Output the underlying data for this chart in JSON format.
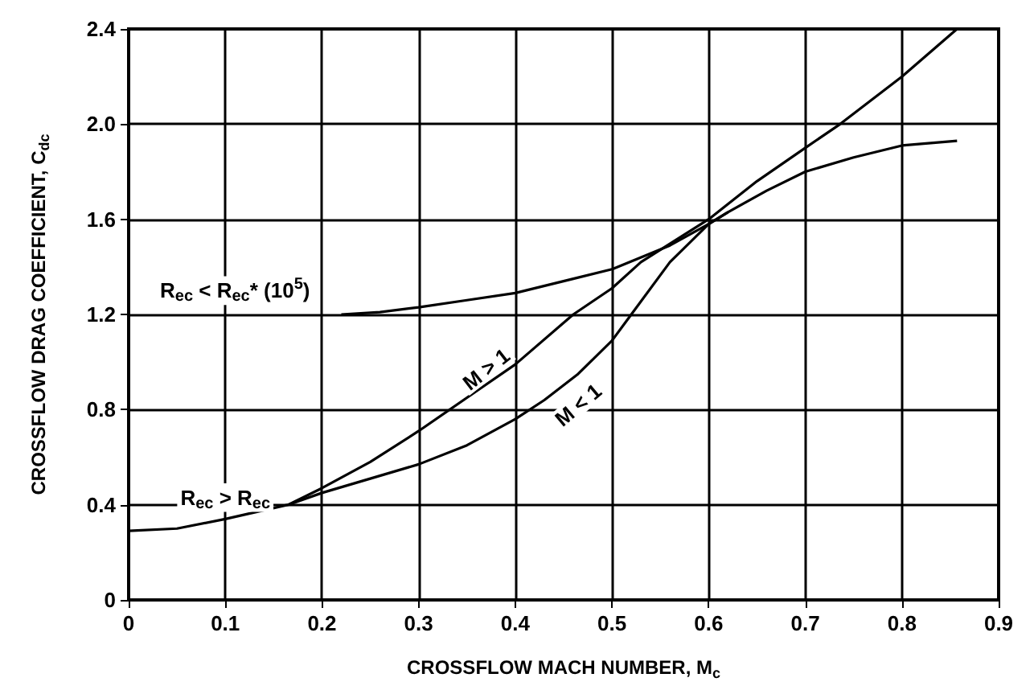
{
  "chart_data": {
    "type": "line",
    "xlabel": "CROSSFLOW MACH NUMBER, M$_{c}$",
    "ylabel": "CROSSFLOW DRAG COEFFICIENT, C$_{dc}$",
    "xlim": [
      0,
      0.9
    ],
    "xticks": [
      0,
      0.1,
      0.2,
      0.3,
      0.4,
      0.5,
      0.6,
      0.7,
      0.8,
      0.9
    ],
    "ylim": [
      0,
      2.4
    ],
    "yticks": [
      0,
      0.4,
      0.8,
      1.2,
      1.6,
      {
        "value": 2,
        "label": "2.0"
      },
      2.4
    ],
    "grid": true,
    "marker": "none",
    "line_style": "solid",
    "series": [
      {
        "color": "#000000",
        "x": [
          0,
          0.05,
          0.1,
          0.165,
          0.2,
          0.25,
          0.3,
          0.35,
          0.4,
          0.46,
          0.5,
          0.53,
          0.6,
          0.65,
          0.7,
          0.736,
          0.8,
          0.857
        ],
        "values": [
          0.29,
          0.3,
          0.34,
          0.4,
          0.47,
          0.58,
          0.71,
          0.85,
          0.99,
          1.2,
          1.31,
          1.42,
          1.6,
          1.76,
          1.9,
          2.0,
          2.2,
          2.4
        ]
      },
      {
        "color": "#000000",
        "x": [
          0.165,
          0.2,
          0.25,
          0.3,
          0.35,
          0.4,
          0.43,
          0.465,
          0.5,
          0.52,
          0.56,
          0.6,
          0.62,
          0.66,
          0.7,
          0.75,
          0.8,
          0.857
        ],
        "values": [
          0.4,
          0.45,
          0.51,
          0.57,
          0.65,
          0.76,
          0.84,
          0.95,
          1.09,
          1.2,
          1.42,
          1.58,
          1.63,
          1.72,
          1.8,
          1.86,
          1.91,
          1.93
        ]
      },
      {
        "color": "#000000",
        "x": [
          0.22,
          0.26,
          0.3,
          0.35,
          0.4,
          0.46,
          0.5,
          0.56,
          0.6,
          0.62
        ],
        "values": [
          1.2,
          1.21,
          1.23,
          1.26,
          1.29,
          1.35,
          1.39,
          1.49,
          1.58,
          1.63
        ]
      }
    ],
    "annotations": [
      "R$_{ec}$ < R$_{ec}$* (10$^{5}$)",
      "R$_{ec}$ > R$_{ec}$",
      {
        "text": "M > 1",
        "x": 0.37,
        "y": 0.97
      },
      {
        "text": "M < 1",
        "x": 0.465,
        "y": 0.82
      }
    ]
  }
}
